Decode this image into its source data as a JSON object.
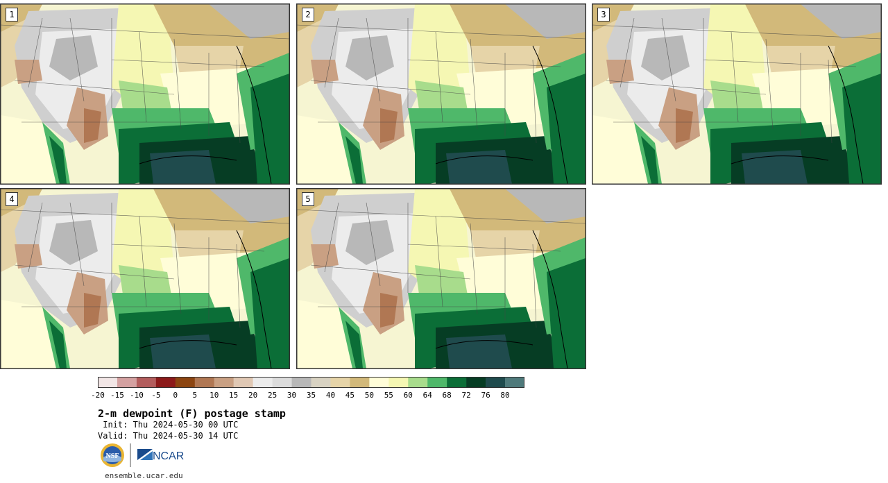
{
  "product": {
    "title": "2-m dewpoint (F) postage stamp",
    "init_line": " Init: Thu 2024-05-30 00 UTC",
    "valid_line": "Valid: Thu 2024-05-30 14 UTC",
    "site": "ensemble.ucar.edu",
    "logo_left": "NSF",
    "logo_right": "NCAR"
  },
  "stamps": [
    {
      "label": "1"
    },
    {
      "label": "2"
    },
    {
      "label": "3"
    },
    {
      "label": "4"
    },
    {
      "label": "5"
    }
  ],
  "colorbar": {
    "tick_labels": [
      "-20",
      "-15",
      "-10",
      "-5",
      "0",
      "5",
      "10",
      "15",
      "20",
      "25",
      "30",
      "35",
      "40",
      "45",
      "50",
      "55",
      "60",
      "64",
      "68",
      "72",
      "76",
      "80"
    ],
    "colors": [
      "#f2e6e6",
      "#d4a1a1",
      "#b35d5d",
      "#8c1a1a",
      "#8c4511",
      "#b07753",
      "#c9a083",
      "#e0c8b4",
      "#ececec",
      "#dcdcdc",
      "#b8b8b8",
      "#d8d2c2",
      "#e6d4a8",
      "#d2b97a",
      "#fffdd8",
      "#f5f7b3",
      "#a8dc8c",
      "#4fb86a",
      "#0b6e37",
      "#063d24",
      "#1f4b4d",
      "#4f7a7b"
    ]
  }
}
